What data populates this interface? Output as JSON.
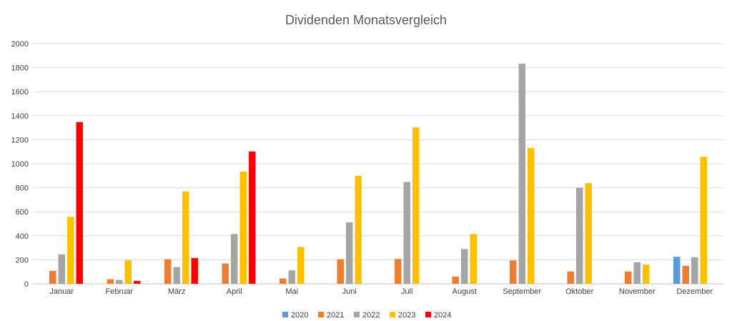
{
  "chart_data": {
    "type": "bar",
    "title": "Dividenden Monatsvergleich",
    "xlabel": "",
    "ylabel": "",
    "ylim": [
      0,
      2000
    ],
    "yticks": [
      0,
      200,
      400,
      600,
      800,
      1000,
      1200,
      1400,
      1600,
      1800,
      2000
    ],
    "grid": true,
    "legend_position": "bottom",
    "categories": [
      "Januar",
      "Februar",
      "März",
      "April",
      "Mai",
      "Juni",
      "Juli",
      "August",
      "September",
      "Oktober",
      "November",
      "Dezember"
    ],
    "series": [
      {
        "name": "2020",
        "color": "#5b9bd5",
        "values": [
          0,
          0,
          0,
          0,
          0,
          0,
          0,
          0,
          0,
          0,
          0,
          225
        ]
      },
      {
        "name": "2021",
        "color": "#ed7d31",
        "values": [
          108,
          38,
          205,
          170,
          45,
          205,
          207,
          60,
          195,
          103,
          103,
          150
        ]
      },
      {
        "name": "2022",
        "color": "#a5a5a5",
        "values": [
          245,
          32,
          140,
          415,
          112,
          512,
          848,
          290,
          1833,
          800,
          180,
          222
        ]
      },
      {
        "name": "2023",
        "color": "#ffc000",
        "values": [
          558,
          197,
          770,
          935,
          307,
          900,
          1302,
          415,
          1130,
          838,
          160,
          1057
        ]
      },
      {
        "name": "2024",
        "color": "#ff0000",
        "values": [
          1347,
          25,
          215,
          1102,
          0,
          0,
          0,
          0,
          0,
          0,
          0,
          0
        ]
      }
    ]
  }
}
